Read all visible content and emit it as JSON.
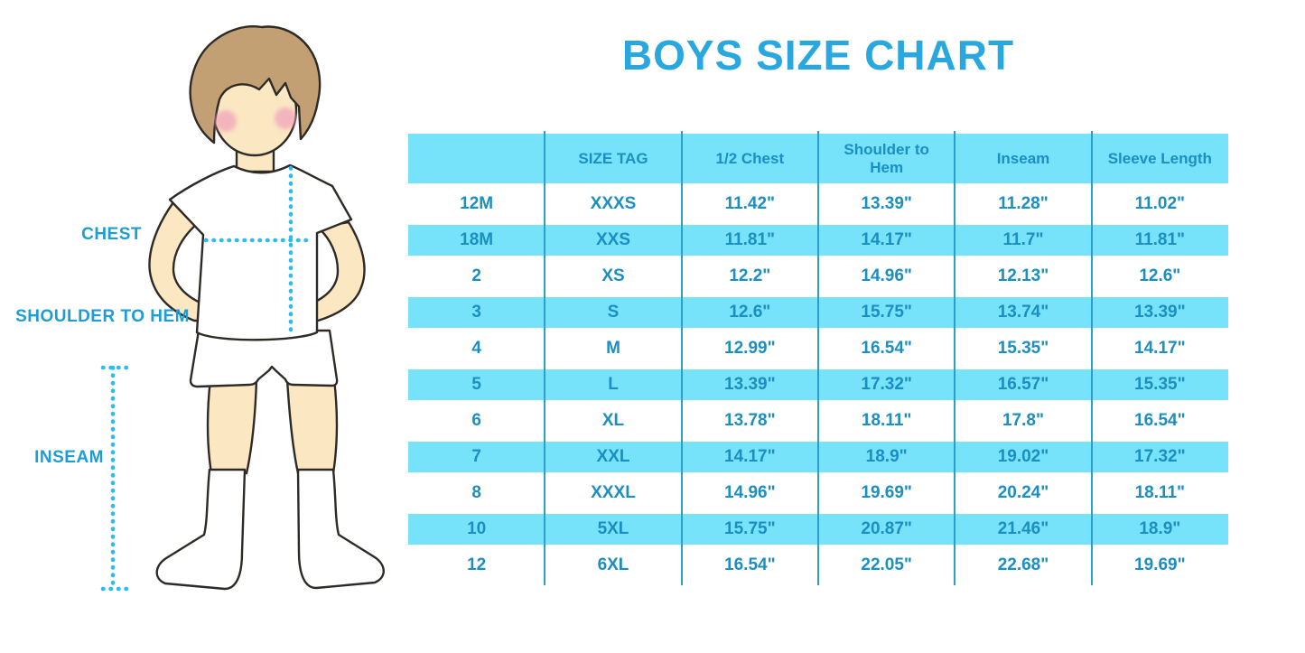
{
  "title": "BOYS SIZE CHART",
  "figure_labels": {
    "chest": "CHEST",
    "shoulder_to_hem": "SHOULDER TO HEM",
    "inseam": "INSEAM"
  },
  "colors": {
    "title_blue": "#29A8E0",
    "label_blue": "#1E9CD8",
    "table_text": "#1B8EC2",
    "row_cyan": "#76E3FA",
    "grid_line": "#2A9FCE",
    "dot_cyan": "#2BBDEE",
    "skin": "#FBE7C2",
    "hair": "#C2A074",
    "blush": "#F2A9BC",
    "outline": "#2E2A26",
    "background": "#FFFFFF"
  },
  "chart_data": {
    "type": "table",
    "title": "BOYS SIZE CHART",
    "columns": [
      "",
      "SIZE TAG",
      "1/2 Chest",
      "Shoulder to Hem",
      "Inseam",
      "Sleeve Length"
    ],
    "rows": [
      [
        "12M",
        "XXXS",
        "11.42\"",
        "13.39\"",
        "11.28\"",
        "11.02\""
      ],
      [
        "18M",
        "XXS",
        "11.81\"",
        "14.17\"",
        "11.7\"",
        "11.81\""
      ],
      [
        "2",
        "XS",
        "12.2\"",
        "14.96\"",
        "12.13\"",
        "12.6\""
      ],
      [
        "3",
        "S",
        "12.6\"",
        "15.75\"",
        "13.74\"",
        "13.39\""
      ],
      [
        "4",
        "M",
        "12.99\"",
        "16.54\"",
        "15.35\"",
        "14.17\""
      ],
      [
        "5",
        "L",
        "13.39\"",
        "17.32\"",
        "16.57\"",
        "15.35\""
      ],
      [
        "6",
        "XL",
        "13.78\"",
        "18.11\"",
        "17.8\"",
        "16.54\""
      ],
      [
        "7",
        "XXL",
        "14.17\"",
        "18.9\"",
        "19.02\"",
        "17.32\""
      ],
      [
        "8",
        "XXXL",
        "14.96\"",
        "19.69\"",
        "20.24\"",
        "18.11\""
      ],
      [
        "10",
        "5XL",
        "15.75\"",
        "20.87\"",
        "21.46\"",
        "18.9\""
      ],
      [
        "12",
        "6XL",
        "16.54\"",
        "22.05\"",
        "22.68\"",
        "19.69\""
      ]
    ],
    "row_striping": "alternating white / cyan, header cyan",
    "legend_position": "none",
    "grid": "vertical column dividers only"
  }
}
